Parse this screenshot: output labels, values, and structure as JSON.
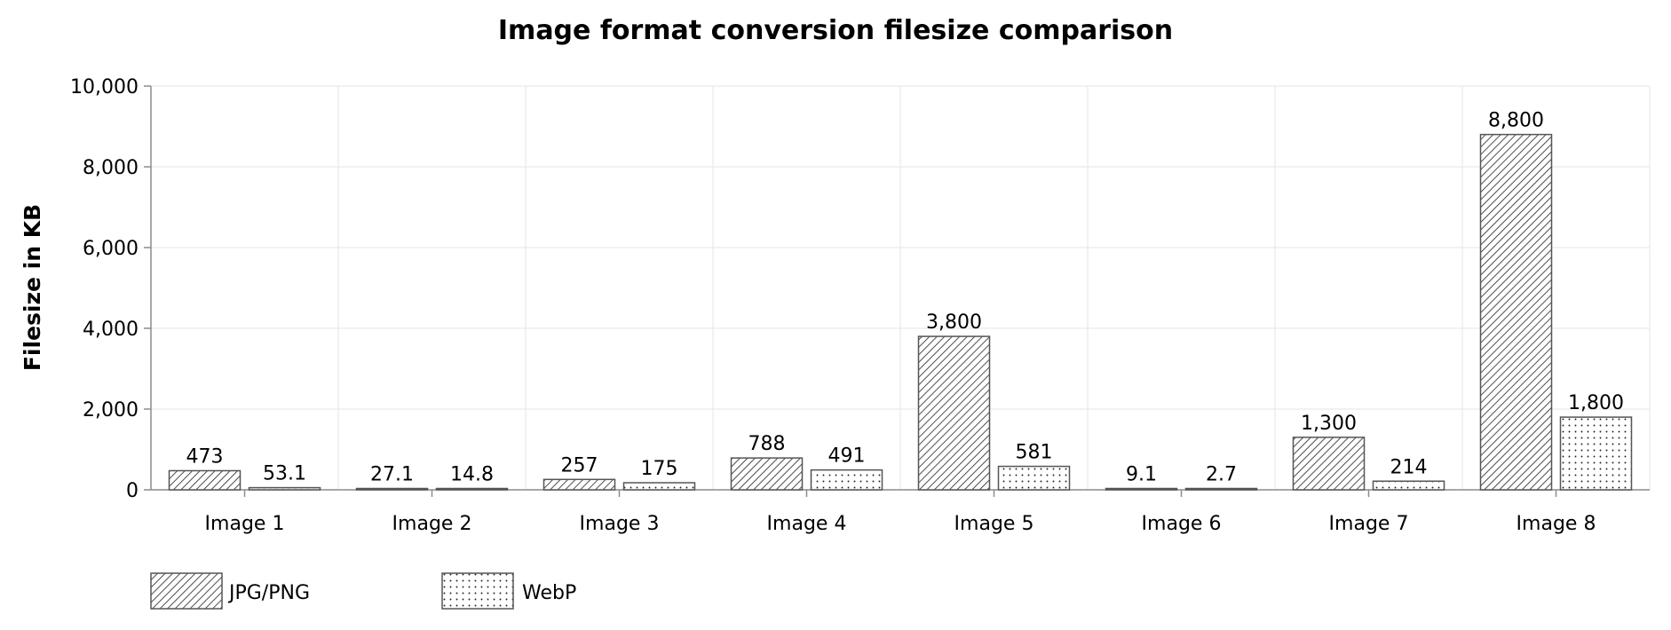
{
  "chart_data": {
    "type": "bar",
    "title": "Image format conversion filesize comparison",
    "xlabel": "",
    "ylabel": "Filesize in KB",
    "categories": [
      "Image 1",
      "Image 2",
      "Image 3",
      "Image 4",
      "Image 5",
      "Image 6",
      "Image 7",
      "Image 8"
    ],
    "series": [
      {
        "name": "JPG/PNG",
        "pattern": "diagonal-hatch",
        "values": [
          473,
          27.1,
          257,
          788,
          3800,
          9.1,
          1300,
          8800
        ],
        "labels": [
          "473",
          "27.1",
          "257",
          "788",
          "3,800",
          "9.1",
          "1,300",
          "8,800"
        ]
      },
      {
        "name": "WebP",
        "pattern": "dots",
        "values": [
          53.1,
          14.8,
          175,
          491,
          581,
          2.7,
          214,
          1800
        ],
        "labels": [
          "53.1",
          "14.8",
          "175",
          "491",
          "581",
          "2.7",
          "214",
          "1,800"
        ]
      }
    ],
    "ylim": [
      0,
      10000
    ],
    "yticks": [
      0,
      2000,
      4000,
      6000,
      8000,
      10000
    ],
    "ytick_labels": [
      "0",
      "2,000",
      "4,000",
      "6,000",
      "8,000",
      "10,000"
    ],
    "grid": true,
    "legend_position": "bottom-left",
    "colors": {
      "bar_stroke": "#555555",
      "bar_fill": "#ffffff",
      "pattern_ink": "#222222",
      "grid": "#e6e6e6",
      "axis": "#8c8c8c"
    }
  }
}
